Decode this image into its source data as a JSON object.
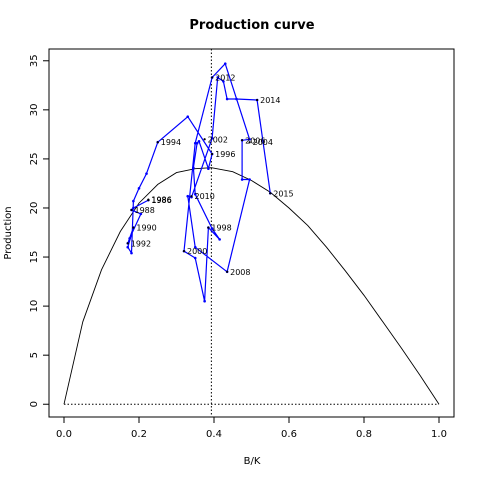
{
  "chart_data": {
    "type": "line",
    "title": "Production curve",
    "xlabel": "B/K",
    "ylabel": "Production",
    "xlim": [
      -0.04,
      1.04
    ],
    "ylim": [
      -1.3,
      36.2
    ],
    "x_ticks": [
      "0.0",
      "0.2",
      "0.4",
      "0.6",
      "0.8",
      "1.0"
    ],
    "x_tick_values": [
      0,
      0.2,
      0.4,
      0.6,
      0.8,
      1.0
    ],
    "y_ticks": [
      "0",
      "5",
      "10",
      "15",
      "20",
      "25",
      "30",
      "35"
    ],
    "y_tick_values": [
      0,
      5,
      10,
      15,
      20,
      25,
      30,
      35
    ],
    "grid": false,
    "colors": {
      "series": "#0000ff",
      "curve": "#000000",
      "reference": "#000000"
    },
    "production_curve": {
      "x": [
        0,
        0.05,
        0.1,
        0.15,
        0.2,
        0.25,
        0.3,
        0.35,
        0.393,
        0.45,
        0.5,
        0.55,
        0.6,
        0.65,
        0.7,
        0.75,
        0.8,
        0.85,
        0.9,
        0.95,
        1.0
      ],
      "y": [
        0,
        8.4,
        13.7,
        17.6,
        20.5,
        22.4,
        23.6,
        24.0,
        24.1,
        23.7,
        22.8,
        21.6,
        20.0,
        18.2,
        16.0,
        13.6,
        11.1,
        8.4,
        5.7,
        2.9,
        0
      ]
    },
    "reference_lines": {
      "vertical_x": 0.393,
      "horizontal_y": 0
    },
    "series": [
      {
        "x": [
          0.225,
          0.185,
          0.18,
          0.205,
          0.175,
          0.17,
          0.185,
          0.17,
          0.18,
          0.185,
          0.2,
          0.22,
          0.25,
          0.33,
          0.395,
          0.385,
          0.36,
          0.355,
          0.345,
          0.35,
          0.395,
          0.415,
          0.385,
          0.375,
          0.35,
          0.32,
          0.35,
          0.395,
          0.43,
          0.495,
          0.475,
          0.475,
          0.495,
          0.435,
          0.35,
          0.33,
          0.34,
          0.395,
          0.41,
          0.425,
          0.435,
          0.46,
          0.515,
          0.55
        ],
        "y": [
          20.8,
          20.0,
          19.8,
          19.4,
          16.9,
          16.4,
          18.0,
          16.0,
          15.4,
          20.7,
          22.0,
          23.5,
          26.7,
          29.3,
          25.5,
          24.0,
          26.8,
          26.6,
          24.1,
          21.4,
          17.9,
          16.8,
          18.0,
          10.5,
          14.9,
          15.6,
          26.6,
          33.3,
          34.7,
          27.0,
          26.9,
          22.9,
          22.9,
          13.5,
          16.0,
          21.2,
          21.1,
          27.1,
          33.3,
          32.9,
          31.1,
          31.1,
          31.0,
          21.5
        ]
      }
    ],
    "labels": [
      {
        "text": "1986",
        "x": 0.225,
        "y": 20.8
      },
      {
        "text": "1986",
        "x": 0.225,
        "y": 20.85
      },
      {
        "text": "1988",
        "x": 0.18,
        "y": 19.8
      },
      {
        "text": "1990",
        "x": 0.185,
        "y": 18.0
      },
      {
        "text": "1992",
        "x": 0.17,
        "y": 16.4
      },
      {
        "text": "1994",
        "x": 0.25,
        "y": 26.7
      },
      {
        "text": "1996",
        "x": 0.395,
        "y": 25.5
      },
      {
        "text": "1998",
        "x": 0.385,
        "y": 18.0
      },
      {
        "text": "2000",
        "x": 0.32,
        "y": 15.6
      },
      {
        "text": "2002",
        "x": 0.375,
        "y": 27.0
      },
      {
        "text": "2004",
        "x": 0.495,
        "y": 26.7
      },
      {
        "text": "2006",
        "x": 0.475,
        "y": 26.9
      },
      {
        "text": "2008",
        "x": 0.435,
        "y": 13.5
      },
      {
        "text": "2010",
        "x": 0.34,
        "y": 21.2
      },
      {
        "text": "2012",
        "x": 0.395,
        "y": 33.3
      },
      {
        "text": "2014",
        "x": 0.515,
        "y": 31.0
      },
      {
        "text": "2015",
        "x": 0.55,
        "y": 21.5
      }
    ]
  }
}
